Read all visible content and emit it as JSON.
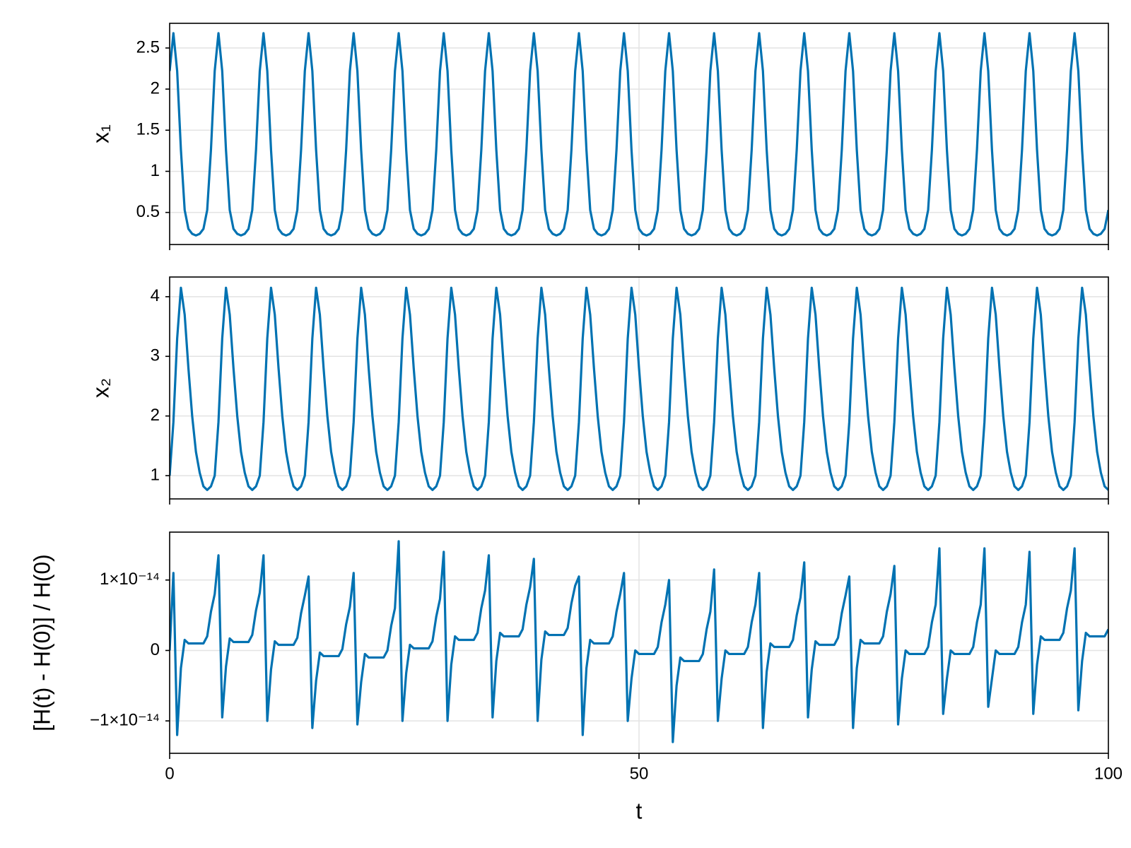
{
  "chart_data": {
    "type": "line",
    "xlabel": "t",
    "xlim": [
      0,
      100
    ],
    "xticks": [
      0,
      50,
      100
    ],
    "grid": true,
    "x": [
      0,
      0.4,
      0.8,
      1.2,
      1.6,
      2,
      2.4,
      2.8,
      3.2,
      3.6,
      4,
      4.4,
      4.8,
      5.2,
      5.6,
      6,
      6.4,
      6.8,
      7.2,
      7.6,
      8,
      8.4,
      8.8,
      9.2,
      9.6,
      10,
      10.4,
      10.8,
      11.2,
      11.6,
      12,
      12.4,
      12.8,
      13.2,
      13.6,
      14,
      14.4,
      14.8,
      15.2,
      15.6,
      16,
      16.4,
      16.8,
      17.2,
      17.6,
      18,
      18.4,
      18.8,
      19.2,
      19.6,
      20,
      20.4,
      20.8,
      21.2,
      21.6,
      22,
      22.4,
      22.8,
      23.2,
      23.6,
      24,
      24.4,
      24.8,
      25.2,
      25.6,
      26,
      26.4,
      26.8,
      27.2,
      27.6,
      28,
      28.4,
      28.8,
      29.2,
      29.6,
      30,
      30.4,
      30.8,
      31.2,
      31.6,
      32,
      32.4,
      32.8,
      33.2,
      33.6,
      34,
      34.4,
      34.8,
      35.2,
      35.6,
      36,
      36.4,
      36.8,
      37.2,
      37.6,
      38,
      38.4,
      38.8,
      39.2,
      39.6,
      40,
      40.4,
      40.8,
      41.2,
      41.6,
      42,
      42.4,
      42.8,
      43.2,
      43.6,
      44,
      44.4,
      44.8,
      45.2,
      45.6,
      46,
      46.4,
      46.8,
      47.2,
      47.6,
      48,
      48.4,
      48.8,
      49.2,
      49.6,
      50,
      50.4,
      50.8,
      51.2,
      51.6,
      52,
      52.4,
      52.8,
      53.2,
      53.6,
      54,
      54.4,
      54.8,
      55.2,
      55.6,
      56,
      56.4,
      56.8,
      57.2,
      57.6,
      58,
      58.4,
      58.8,
      59.2,
      59.6,
      60,
      60.4,
      60.8,
      61.2,
      61.6,
      62,
      62.4,
      62.8,
      63.2,
      63.6,
      64,
      64.4,
      64.8,
      65.2,
      65.6,
      66,
      66.4,
      66.8,
      67.2,
      67.6,
      68,
      68.4,
      68.8,
      69.2,
      69.6,
      70,
      70.4,
      70.8,
      71.2,
      71.6,
      72,
      72.4,
      72.8,
      73.2,
      73.6,
      74,
      74.4,
      74.8,
      75.2,
      75.6,
      76,
      76.4,
      76.8,
      77.2,
      77.6,
      78,
      78.4,
      78.8,
      79.2,
      79.6,
      80,
      80.4,
      80.8,
      81.2,
      81.6,
      82,
      82.4,
      82.8,
      83.2,
      83.6,
      84,
      84.4,
      84.8,
      85.2,
      85.6,
      86,
      86.4,
      86.8,
      87.2,
      87.6,
      88,
      88.4,
      88.8,
      89.2,
      89.6,
      90,
      90.4,
      90.8,
      91.2,
      91.6,
      92,
      92.4,
      92.8,
      93.2,
      93.6,
      94,
      94.4,
      94.8,
      95.2,
      95.6,
      96,
      96.4,
      96.8,
      97.2,
      97.6,
      98,
      98.4,
      98.8,
      99.2,
      99.6,
      100
    ],
    "panels": [
      {
        "ylabel": "x₁",
        "ylim": [
          0.11,
          2.8
        ],
        "yticks": [
          0.5,
          1.0,
          1.5,
          2.0,
          2.5
        ],
        "series": [
          {
            "color": "#0072b2",
            "values": [
              2.22,
              2.68,
              2.22,
              1.26,
              0.53,
              0.3,
              0.24,
              0.22,
              0.24,
              0.3,
              0.53,
              1.26,
              2.22,
              2.68,
              2.22,
              1.26,
              0.53,
              0.3,
              0.24,
              0.22,
              0.24,
              0.3,
              0.53,
              1.26,
              2.22,
              2.68,
              2.22,
              1.26,
              0.53,
              0.3,
              0.24,
              0.22,
              0.24,
              0.3,
              0.53,
              1.26,
              2.22,
              2.68,
              2.22,
              1.26,
              0.53,
              0.3,
              0.24,
              0.22,
              0.24,
              0.3,
              0.53,
              1.26,
              2.22,
              2.68,
              2.22,
              1.26,
              0.53,
              0.3,
              0.24,
              0.22,
              0.24,
              0.3,
              0.53,
              1.26,
              2.22,
              2.68,
              2.22,
              1.26,
              0.53,
              0.3,
              0.24,
              0.22,
              0.24,
              0.3,
              0.53,
              1.26,
              2.22,
              2.68,
              2.22,
              1.26,
              0.53,
              0.3,
              0.24,
              0.22,
              0.24,
              0.3,
              0.53,
              1.26,
              2.22,
              2.68,
              2.22,
              1.26,
              0.53,
              0.3,
              0.24,
              0.22,
              0.24,
              0.3,
              0.53,
              1.26,
              2.22,
              2.68,
              2.22,
              1.26,
              0.53,
              0.3,
              0.24,
              0.22,
              0.24,
              0.3,
              0.53,
              1.26,
              2.22,
              2.68,
              2.22,
              1.26,
              0.53,
              0.3,
              0.24,
              0.22,
              0.24,
              0.3,
              0.53,
              1.26,
              2.22,
              2.68,
              2.22,
              1.26,
              0.53,
              0.3,
              0.24,
              0.22,
              0.24,
              0.3,
              0.53,
              1.26,
              2.22,
              2.68,
              2.22,
              1.26,
              0.53,
              0.3,
              0.24,
              0.22,
              0.24,
              0.3,
              0.53,
              1.26,
              2.22,
              2.68,
              2.22,
              1.26,
              0.53,
              0.3,
              0.24,
              0.22,
              0.24,
              0.3,
              0.53,
              1.26,
              2.22,
              2.68,
              2.22,
              1.26,
              0.53,
              0.3,
              0.24,
              0.22,
              0.24,
              0.3,
              0.53,
              1.26,
              2.22,
              2.68,
              2.22,
              1.26,
              0.53,
              0.3,
              0.24,
              0.22,
              0.24,
              0.3,
              0.53,
              1.26,
              2.22,
              2.68,
              2.22,
              1.26,
              0.53,
              0.3,
              0.24,
              0.22,
              0.24,
              0.3,
              0.53,
              1.26,
              2.22,
              2.68,
              2.22,
              1.26,
              0.53,
              0.3,
              0.24,
              0.22,
              0.24,
              0.3,
              0.53,
              1.26,
              2.22,
              2.68,
              2.22,
              1.26,
              0.53,
              0.3,
              0.24,
              0.22,
              0.24,
              0.3,
              0.53,
              1.26,
              2.22,
              2.68,
              2.22,
              1.26,
              0.53,
              0.3,
              0.24,
              0.22,
              0.24,
              0.3,
              0.53,
              1.26,
              2.22,
              2.68,
              2.22,
              1.26,
              0.53,
              0.3,
              0.24,
              0.22,
              0.24,
              0.3,
              0.53,
              1.26,
              2.22,
              2.68,
              2.22,
              1.26,
              0.53,
              0.3,
              0.24,
              0.22,
              0.24,
              0.3,
              0.53
            ]
          }
        ]
      },
      {
        "ylabel": "x₂",
        "ylim": [
          0.61,
          4.33
        ],
        "yticks": [
          1,
          2,
          3,
          4
        ],
        "series": [
          {
            "color": "#0072b2",
            "values": [
              1,
              1.9,
              3.3,
              4.15,
              3.7,
              2.8,
              2,
              1.4,
              1.05,
              0.82,
              0.76,
              0.82,
              1,
              1.9,
              3.3,
              4.15,
              3.7,
              2.8,
              2,
              1.4,
              1.05,
              0.82,
              0.76,
              0.82,
              1,
              1.9,
              3.3,
              4.15,
              3.7,
              2.8,
              2,
              1.4,
              1.05,
              0.82,
              0.76,
              0.82,
              1,
              1.9,
              3.3,
              4.15,
              3.7,
              2.8,
              2,
              1.4,
              1.05,
              0.82,
              0.76,
              0.82,
              1,
              1.9,
              3.3,
              4.15,
              3.7,
              2.8,
              2,
              1.4,
              1.05,
              0.82,
              0.76,
              0.82,
              1,
              1.9,
              3.3,
              4.15,
              3.7,
              2.8,
              2,
              1.4,
              1.05,
              0.82,
              0.76,
              0.82,
              1,
              1.9,
              3.3,
              4.15,
              3.7,
              2.8,
              2,
              1.4,
              1.05,
              0.82,
              0.76,
              0.82,
              1,
              1.9,
              3.3,
              4.15,
              3.7,
              2.8,
              2,
              1.4,
              1.05,
              0.82,
              0.76,
              0.82,
              1,
              1.9,
              3.3,
              4.15,
              3.7,
              2.8,
              2,
              1.4,
              1.05,
              0.82,
              0.76,
              0.82,
              1,
              1.9,
              3.3,
              4.15,
              3.7,
              2.8,
              2,
              1.4,
              1.05,
              0.82,
              0.76,
              0.82,
              1,
              1.9,
              3.3,
              4.15,
              3.7,
              2.8,
              2,
              1.4,
              1.05,
              0.82,
              0.76,
              0.82,
              1,
              1.9,
              3.3,
              4.15,
              3.7,
              2.8,
              2,
              1.4,
              1.05,
              0.82,
              0.76,
              0.82,
              1,
              1.9,
              3.3,
              4.15,
              3.7,
              2.8,
              2,
              1.4,
              1.05,
              0.82,
              0.76,
              0.82,
              1,
              1.9,
              3.3,
              4.15,
              3.7,
              2.8,
              2,
              1.4,
              1.05,
              0.82,
              0.76,
              0.82,
              1,
              1.9,
              3.3,
              4.15,
              3.7,
              2.8,
              2,
              1.4,
              1.05,
              0.82,
              0.76,
              0.82,
              1,
              1.9,
              3.3,
              4.15,
              3.7,
              2.8,
              2,
              1.4,
              1.05,
              0.82,
              0.76,
              0.82,
              1,
              1.9,
              3.3,
              4.15,
              3.7,
              2.8,
              2,
              1.4,
              1.05,
              0.82,
              0.76,
              0.82,
              1,
              1.9,
              3.3,
              4.15,
              3.7,
              2.8,
              2,
              1.4,
              1.05,
              0.82,
              0.76,
              0.82,
              1,
              1.9,
              3.3,
              4.15,
              3.7,
              2.8,
              2,
              1.4,
              1.05,
              0.82,
              0.76,
              0.82,
              1,
              1.9,
              3.3,
              4.15,
              3.7,
              2.8,
              2,
              1.4,
              1.05,
              0.82,
              0.76,
              0.82,
              1,
              1.9,
              3.3,
              4.15,
              3.7,
              2.8,
              2,
              1.4,
              1.05,
              0.82,
              0.76
            ]
          }
        ]
      },
      {
        "ylabel": "[H(t) - H(0)] / H(0)",
        "ylim": [
          -1.46e-14,
          1.68e-14
        ],
        "yticks": [
          {
            "value": -1e-14,
            "label": "−1×10⁻¹⁴"
          },
          0,
          {
            "value": 1e-14,
            "label": "1×10⁻¹⁴"
          }
        ],
        "series": [
          {
            "color": "#0072b2",
            "values": [
              0,
              1.1e-14,
              -1.2e-14,
              -2.5e-15,
              1.5e-15,
              1e-15,
              1e-15,
              1e-15,
              1e-15,
              1e-15,
              2e-15,
              5.5e-15,
              8e-15,
              1.35e-14,
              -9.5e-15,
              -2.3e-15,
              1.7e-15,
              1.2e-15,
              1.2e-15,
              1.2e-15,
              1.2e-15,
              1.2e-15,
              2.2e-15,
              5.7e-15,
              8.2e-15,
              1.35e-14,
              -1e-14,
              -2.7e-15,
              1.3e-15,
              8e-16,
              8e-16,
              8e-16,
              8e-16,
              8e-16,
              1.8e-15,
              5.3e-15,
              7.8e-15,
              1.05e-14,
              -1.1e-14,
              -4.3e-15,
              -3e-16,
              -8e-16,
              -8e-16,
              -8e-16,
              -8e-16,
              -8e-16,
              2e-16,
              3.7e-15,
              6.2e-15,
              1.1e-14,
              -1.05e-14,
              -4.5e-15,
              -5e-16,
              -1e-15,
              -1e-15,
              -1e-15,
              -1e-15,
              -1e-15,
              0,
              3.5e-15,
              6e-15,
              1.55e-14,
              -1e-14,
              -3.2e-15,
              8e-16,
              3e-16,
              3e-16,
              3e-16,
              3e-16,
              3e-16,
              1.3e-15,
              4.8e-15,
              7.3e-15,
              1.4e-14,
              -1e-14,
              -2e-15,
              2e-15,
              1.5e-15,
              1.5e-15,
              1.5e-15,
              1.5e-15,
              1.5e-15,
              2.5e-15,
              6e-15,
              8.5e-15,
              1.35e-14,
              -9.5e-15,
              -1.5e-15,
              2.5e-15,
              2e-15,
              2e-15,
              2e-15,
              2e-15,
              2e-15,
              3e-15,
              6.5e-15,
              9e-15,
              1.3e-14,
              -1e-14,
              -1.3e-15,
              2.7e-15,
              2.2e-15,
              2.2e-15,
              2.2e-15,
              2.2e-15,
              2.2e-15,
              3.2e-15,
              6.7e-15,
              9.2e-15,
              1.05e-14,
              -1.2e-14,
              -2.5e-15,
              1.5e-15,
              1e-15,
              1e-15,
              1e-15,
              1e-15,
              1e-15,
              2e-15,
              5.5e-15,
              8e-15,
              1.1e-14,
              -1e-14,
              -4e-15,
              0,
              -5e-16,
              -5e-16,
              -5e-16,
              -5e-16,
              -5e-16,
              5e-16,
              4e-15,
              6.5e-15,
              1e-14,
              -1.3e-14,
              -5e-15,
              -1e-15,
              -1.5e-15,
              -1.5e-15,
              -1.5e-15,
              -1.5e-15,
              -1.5e-15,
              -5e-16,
              3e-15,
              5.5e-15,
              1.15e-14,
              -1e-14,
              -4e-15,
              0,
              -5e-16,
              -5e-16,
              -5e-16,
              -5e-16,
              -5e-16,
              5e-16,
              4e-15,
              6.5e-15,
              1.1e-14,
              -1.1e-14,
              -3e-15,
              1e-15,
              5e-16,
              5e-16,
              5e-16,
              5e-16,
              5e-16,
              1.5e-15,
              5e-15,
              7.5e-15,
              1.25e-14,
              -9.5e-15,
              -2.7e-15,
              1.3e-15,
              8e-16,
              8e-16,
              8e-16,
              8e-16,
              8e-16,
              1.8e-15,
              5.3e-15,
              7.8e-15,
              1.05e-14,
              -1.1e-14,
              -2.5e-15,
              1.5e-15,
              1e-15,
              1e-15,
              1e-15,
              1e-15,
              1e-15,
              2e-15,
              5.5e-15,
              8e-15,
              1.2e-14,
              -1.05e-14,
              -4e-15,
              0,
              -5e-16,
              -5e-16,
              -5e-16,
              -5e-16,
              -5e-16,
              5e-16,
              4e-15,
              6.5e-15,
              1.45e-14,
              -9e-15,
              -4e-15,
              0,
              -5e-16,
              -5e-16,
              -5e-16,
              -5e-16,
              -5e-16,
              5e-16,
              4e-15,
              6.5e-15,
              1.45e-14,
              -8e-15,
              -4e-15,
              0,
              -5e-16,
              -5e-16,
              -5e-16,
              -5e-16,
              -5e-16,
              5e-16,
              4e-15,
              6.5e-15,
              1.4e-14,
              -9e-15,
              -2e-15,
              2e-15,
              1.5e-15,
              1.5e-15,
              1.5e-15,
              1.5e-15,
              1.5e-15,
              2.5e-15,
              6e-15,
              8.5e-15,
              1.45e-14,
              -8.5e-15,
              -1.5e-15,
              2.5e-15,
              2e-15,
              2e-15,
              2e-15,
              2e-15,
              2e-15,
              3e-15
            ]
          }
        ]
      }
    ]
  }
}
